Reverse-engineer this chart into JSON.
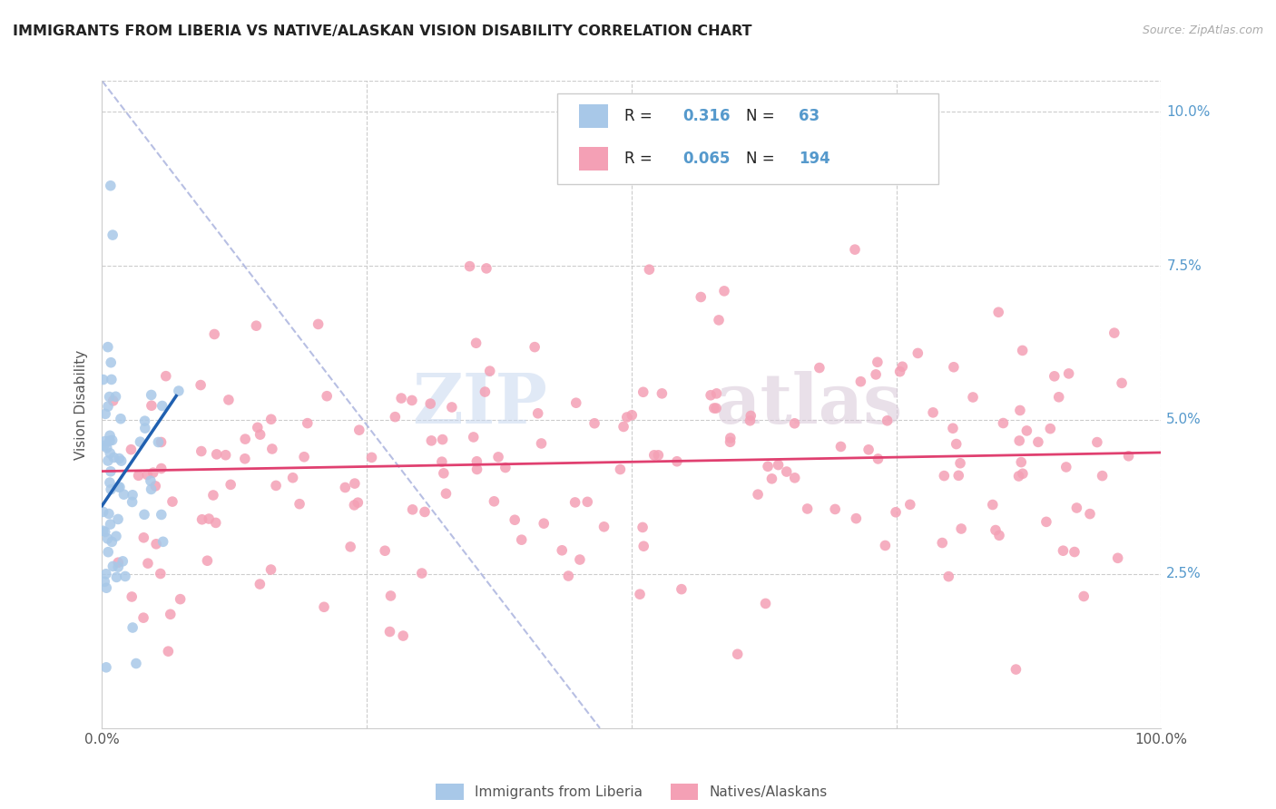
{
  "title": "IMMIGRANTS FROM LIBERIA VS NATIVE/ALASKAN VISION DISABILITY CORRELATION CHART",
  "source": "Source: ZipAtlas.com",
  "ylabel": "Vision Disability",
  "xlim": [
    0.0,
    1.0
  ],
  "ylim": [
    0.0,
    0.105
  ],
  "blue_R": 0.316,
  "blue_N": 63,
  "pink_R": 0.065,
  "pink_N": 194,
  "blue_color": "#a8c8e8",
  "pink_color": "#f4a0b5",
  "blue_line_color": "#2060b0",
  "pink_line_color": "#e04070",
  "dashed_line_color": "#b0b8e0",
  "background_color": "#ffffff",
  "grid_color": "#cccccc",
  "watermark_zip": "ZIP",
  "watermark_atlas": "atlas",
  "tick_color": "#5599cc",
  "label_color": "#555555"
}
